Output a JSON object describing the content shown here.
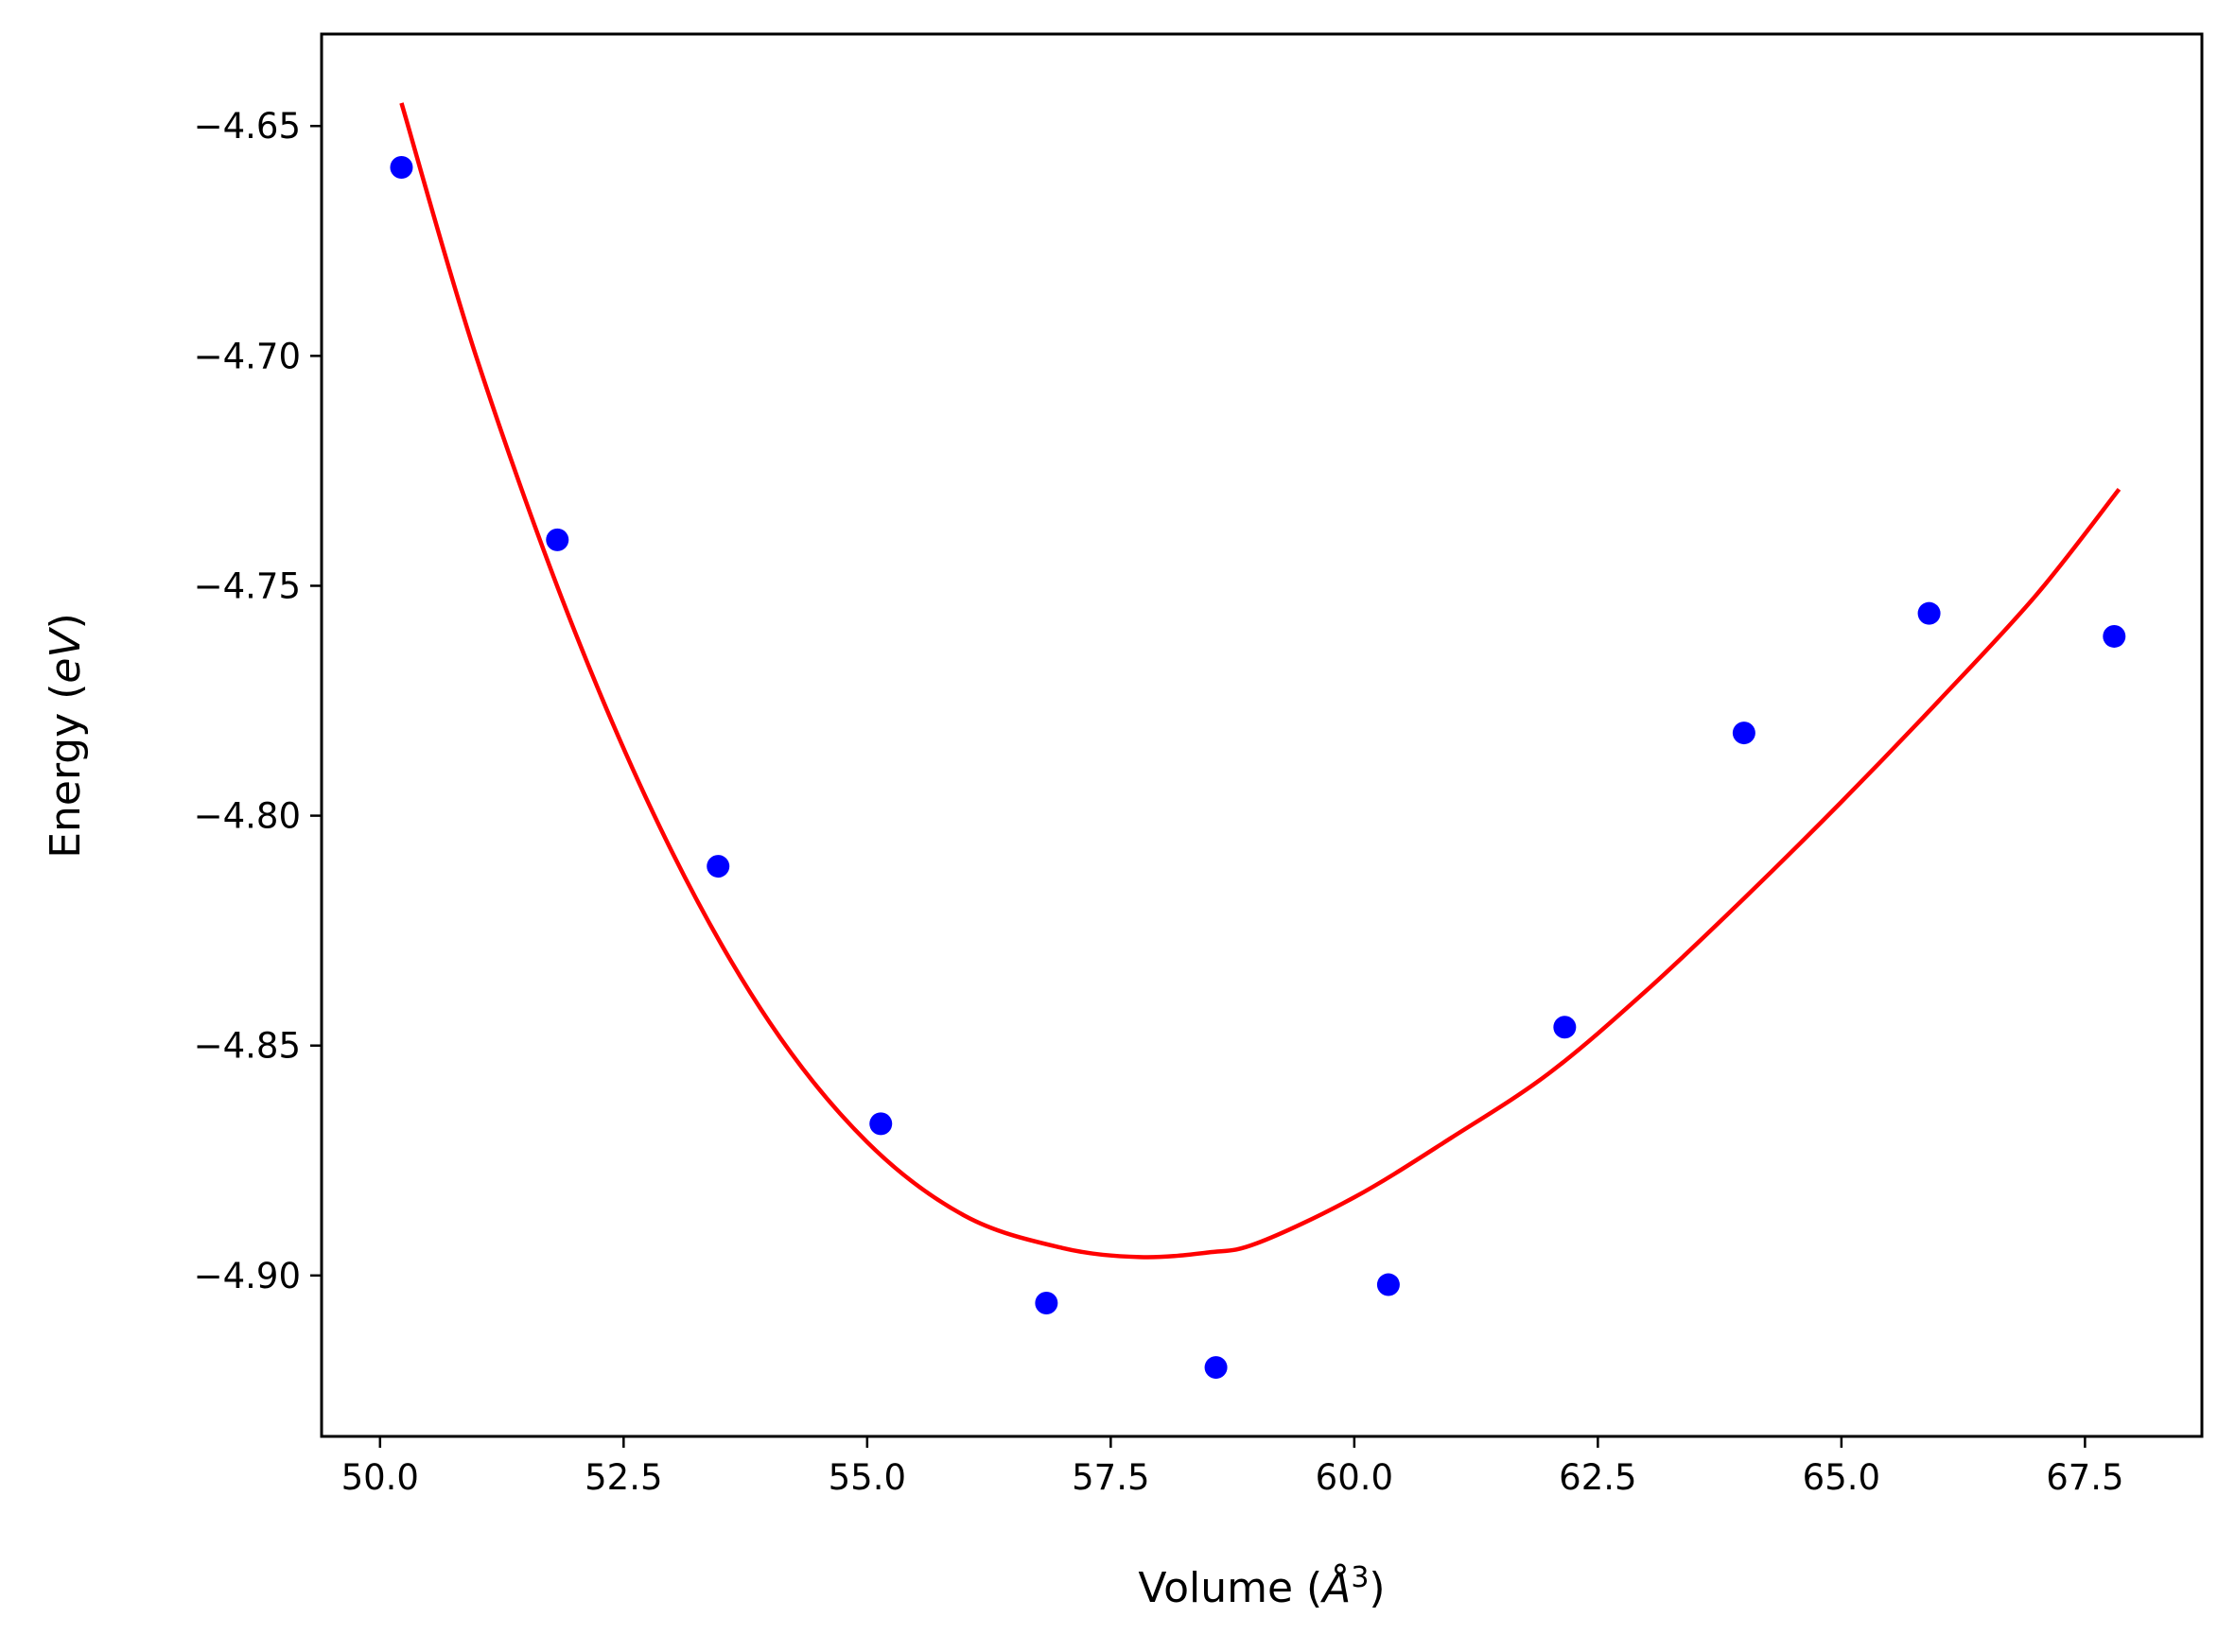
{
  "chart_data": {
    "type": "scatter",
    "xlabel": "Volume ",
    "xlabel_unit": "Å",
    "xlabel_exponent": "3",
    "ylabel": "Energy ",
    "ylabel_unit": "eV",
    "xlim": [
      49.4,
      68.7
    ],
    "ylim": [
      -4.935,
      -4.63
    ],
    "xticks": [
      50.0,
      52.5,
      55.0,
      57.5,
      60.0,
      62.5,
      65.0,
      67.5
    ],
    "xtick_labels": [
      "50.0",
      "52.5",
      "55.0",
      "57.5",
      "60.0",
      "62.5",
      "65.0",
      "67.5"
    ],
    "yticks": [
      -4.65,
      -4.7,
      -4.75,
      -4.8,
      -4.85,
      -4.9
    ],
    "ytick_labels": [
      "−4.65",
      "−4.70",
      "−4.75",
      "−4.80",
      "−4.85",
      "−4.90"
    ],
    "grid": false,
    "series": [
      {
        "kind": "scatter",
        "color": "#0000ff",
        "x": [
          50.22,
          51.82,
          53.47,
          55.14,
          56.84,
          58.58,
          60.35,
          62.16,
          64.0,
          65.9,
          67.8
        ],
        "y": [
          -4.659,
          -4.74,
          -4.811,
          -4.867,
          -4.906,
          -4.92,
          -4.902,
          -4.846,
          -4.782,
          -4.756,
          -4.761
        ]
      },
      {
        "kind": "line",
        "color": "#ff0000",
        "x": [
          50.22,
          51.0,
          52.0,
          53.0,
          54.0,
          55.0,
          56.0,
          57.0,
          57.8,
          58.5,
          59.0,
          60.0,
          61.0,
          62.0,
          63.0,
          64.0,
          65.0,
          66.0,
          67.0,
          67.85
        ],
        "y": [
          -4.645,
          -4.701,
          -4.76,
          -4.808,
          -4.845,
          -4.871,
          -4.887,
          -4.894,
          -4.896,
          -4.895,
          -4.893,
          -4.883,
          -4.87,
          -4.856,
          -4.838,
          -4.818,
          -4.797,
          -4.775,
          -4.752,
          -4.729
        ]
      }
    ]
  }
}
